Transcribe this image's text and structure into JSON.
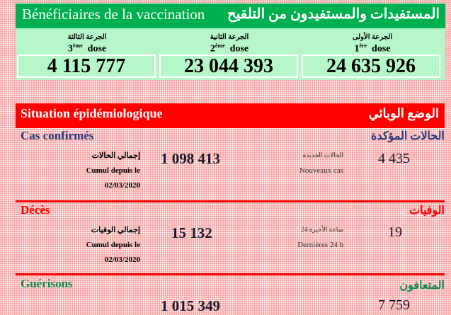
{
  "vaccination": {
    "title_fr": "Bénéficiaires de la vaccination",
    "title_ar": "المستفيدات والمستفيدون من التلقيح",
    "doses": [
      {
        "label_ar": "الجرعة الثالثة",
        "label_num": "3",
        "label_sup": "ème",
        "label_word": "dose",
        "value": "4 115 777"
      },
      {
        "label_ar": "الجرعة الثانية",
        "label_num": "2",
        "label_sup": "ème",
        "label_word": "dose",
        "value": "23 044 393"
      },
      {
        "label_ar": "الجرعة الأولى",
        "label_num": "1",
        "label_sup": "ère",
        "label_word": "dose",
        "value": "24 635 926"
      }
    ]
  },
  "epidemiology": {
    "title_fr": "Situation épidémiologique",
    "title_ar": "الوضع الوبائي",
    "sections": [
      {
        "title_fr": "Cas confirmés",
        "title_ar": "الحالات المؤكدة",
        "total_label_ar": "إجمالي الحالات",
        "total_label_fr": "Cumul depuis le",
        "total_date": "02/03/2020",
        "total": "1 098 413",
        "new_label_ar": "الحالات الجديدة",
        "new_label_fr": "Nouveaux cas",
        "new": "4 435",
        "color": "#1f3a7a"
      },
      {
        "title_fr": "Décès",
        "title_ar": "الوفيات",
        "total_label_ar": "إجمالي الوفيات",
        "total_label_fr": "Cumul depuis le",
        "total_date": "02/03/2020",
        "total": "15 132",
        "new_label_ar": "24 ساعة الأخيرة",
        "new_label_fr": "Dernières 24 h",
        "new": "19",
        "color": "#ff0000"
      },
      {
        "title_fr": "Guérisons",
        "title_ar": "المتعافون",
        "total": "1 015 349",
        "new": "7 759",
        "color": "#0f8a45"
      }
    ]
  }
}
